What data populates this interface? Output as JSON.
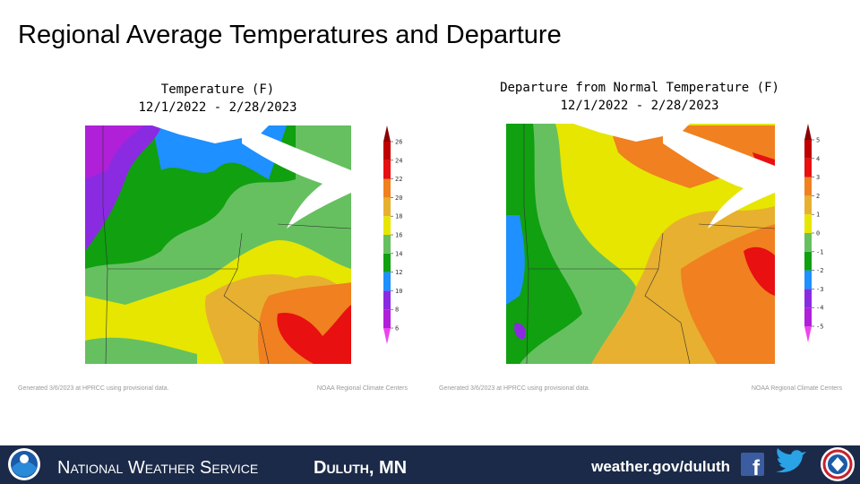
{
  "slide_title": "Regional Average Temperatures and Departure",
  "maps": [
    {
      "title_lines": [
        "Temperature (F)",
        "12/1/2022 - 2/28/2023"
      ],
      "colorbar": {
        "ticks": [
          6,
          8,
          10,
          12,
          14,
          16,
          18,
          20,
          22,
          24,
          26
        ],
        "colors": [
          "#ee44ee",
          "#b020d8",
          "#8a2be2",
          "#1e90ff",
          "#10a010",
          "#66c060",
          "#e6e600",
          "#e8b030",
          "#f08020",
          "#e81010",
          "#c00000",
          "#8b0000"
        ]
      },
      "generated": "Generated 3/6/2023 at HPRCC using provisional data.",
      "credit": "NOAA Regional Climate Centers"
    },
    {
      "title_lines": [
        "Departure from Normal Temperature (F)",
        "12/1/2022 - 2/28/2023"
      ],
      "colorbar": {
        "ticks": [
          -5,
          -4,
          -3,
          -2,
          -1,
          0,
          1,
          2,
          3,
          4,
          5
        ],
        "colors": [
          "#ee44ee",
          "#b020d8",
          "#8a2be2",
          "#1e90ff",
          "#10a010",
          "#66c060",
          "#e6e600",
          "#e8b030",
          "#f08020",
          "#e81010",
          "#c00000",
          "#8b0000"
        ]
      },
      "generated": "Generated 3/6/2023 at HPRCC using provisional data.",
      "credit": "NOAA Regional Climate Centers"
    }
  ],
  "footer": {
    "agency": "National Weather Service",
    "office": "Duluth, MN",
    "url": "weather.gov/duluth"
  }
}
